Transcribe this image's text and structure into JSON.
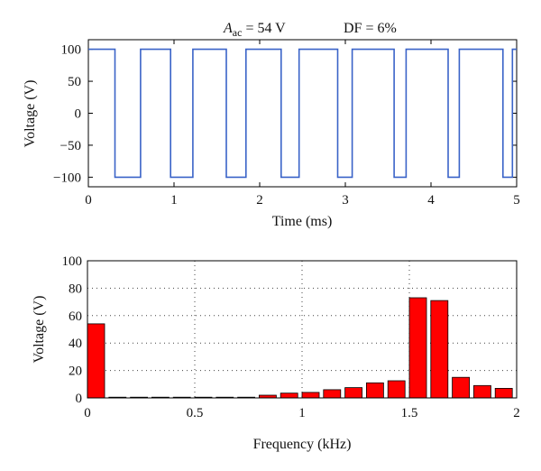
{
  "annotation": {
    "a_symbol": "A",
    "a_subscript": "ac",
    "a_value": " = 54 V",
    "df_text": "DF = 6%"
  },
  "chart_data": [
    {
      "type": "line",
      "xlabel": "Time (ms)",
      "ylabel": "Voltage (V)",
      "xlim": [
        0,
        5
      ],
      "ylim": [
        -115,
        115
      ],
      "xticks": [
        0,
        1,
        2,
        3,
        4,
        5
      ],
      "yticks": [
        100,
        50,
        0,
        -50,
        -100
      ],
      "grid": false,
      "color": "#3a63c8",
      "series": [
        {
          "x": [
            0,
            0.31,
            0.31,
            0.61,
            0.61,
            0.96,
            0.96,
            1.22,
            1.22,
            1.61,
            1.61,
            1.84,
            1.84,
            2.25,
            2.25,
            2.46,
            2.46,
            2.91,
            2.91,
            3.08,
            3.08,
            3.57,
            3.57,
            3.71,
            3.71,
            4.2,
            4.2,
            4.33,
            4.33,
            4.84,
            4.84,
            4.95,
            4.95,
            5.0
          ],
          "y": [
            100,
            100,
            -100,
            -100,
            100,
            100,
            -100,
            -100,
            100,
            100,
            -100,
            -100,
            100,
            100,
            -100,
            -100,
            100,
            100,
            -100,
            -100,
            100,
            100,
            -100,
            -100,
            100,
            100,
            -100,
            -100,
            100,
            100,
            -100,
            -100,
            100,
            100
          ]
        }
      ]
    },
    {
      "type": "bar",
      "xlabel": "Frequency (kHz)",
      "ylabel": "Voltage (V)",
      "xlim": [
        0,
        2
      ],
      "ylim": [
        0,
        100
      ],
      "xticks": [
        "0",
        "0.5",
        "1",
        "1.5",
        "2"
      ],
      "yticks": [
        0,
        20,
        40,
        60,
        80,
        100
      ],
      "grid": true,
      "bar_color": "#ff0000",
      "bar_width": 0.08,
      "x": [
        0.04,
        0.14,
        0.24,
        0.34,
        0.44,
        0.54,
        0.64,
        0.74,
        0.84,
        0.94,
        1.04,
        1.14,
        1.24,
        1.34,
        1.44,
        1.54,
        1.64,
        1.74,
        1.84,
        1.94
      ],
      "values": [
        54,
        0.5,
        0.5,
        0.5,
        0.5,
        0.5,
        0.5,
        0.5,
        2,
        3.5,
        4,
        6,
        7.5,
        11,
        12.5,
        73,
        71,
        15,
        9,
        7
      ]
    }
  ]
}
